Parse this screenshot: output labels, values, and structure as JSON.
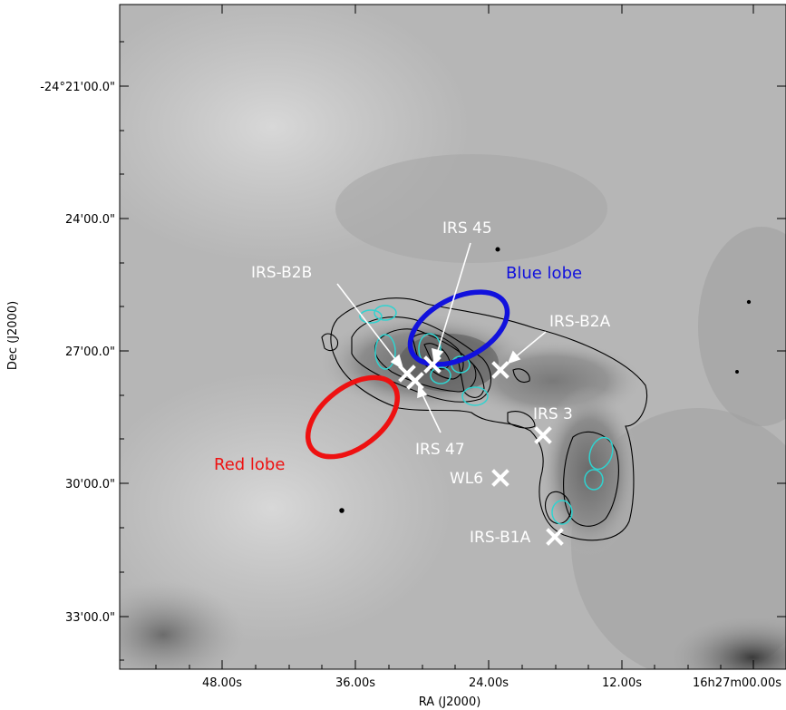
{
  "axes": {
    "xlabel": "RA (J2000)",
    "ylabel": "Dec (J2000)",
    "x_ticks": [
      "48.00s",
      "36.00s",
      "24.00s",
      "12.00s",
      "16h27m00.00s"
    ],
    "y_ticks": [
      "-24°21'00.0\"",
      "24'00.0\"",
      "27'00.0\"",
      "30'00.0\"",
      "33'00.0\""
    ]
  },
  "sources": [
    {
      "name": "IRS 45"
    },
    {
      "name": "IRS-B2B"
    },
    {
      "name": "IRS-B2A"
    },
    {
      "name": "IRS 3"
    },
    {
      "name": "IRS 47"
    },
    {
      "name": "WL6"
    },
    {
      "name": "IRS-B1A"
    }
  ],
  "lobes": [
    {
      "name": "Blue lobe",
      "color": "#1111dd"
    },
    {
      "name": "Red lobe",
      "color": "#ee1111"
    }
  ],
  "colors": {
    "marker": "#ffffff",
    "contour_black": "#000000",
    "contour_cyan": "#2fd3d0",
    "background_gray": "#b5b5b5"
  }
}
